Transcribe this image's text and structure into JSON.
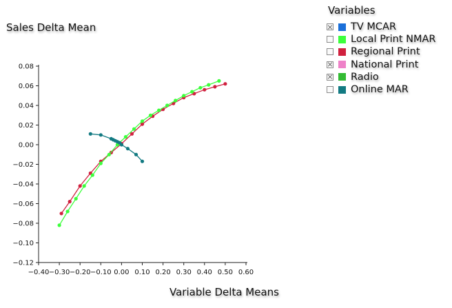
{
  "chart_data": {
    "type": "line",
    "ylabel": "Sales Delta Mean",
    "xlabel": "Variable Delta Means",
    "xlim": [
      -0.4,
      0.6
    ],
    "ylim": [
      -0.12,
      0.08
    ],
    "x_ticks": [
      "−0.40",
      "−0.30",
      "−0.20",
      "−0.10",
      "0.00",
      "0.10",
      "0.20",
      "0.30",
      "0.40",
      "0.50",
      "0.60"
    ],
    "y_ticks": [
      "0.08",
      "0.06",
      "0.04",
      "0.02",
      "0.00",
      "−0.02",
      "−0.04",
      "−0.06",
      "−0.08",
      "−0.10",
      "−0.12"
    ],
    "x_tick_values": [
      -0.4,
      -0.3,
      -0.2,
      -0.1,
      0.0,
      0.1,
      0.2,
      0.3,
      0.4,
      0.5,
      0.6
    ],
    "y_tick_values": [
      0.08,
      0.06,
      0.04,
      0.02,
      0.0,
      -0.02,
      -0.04,
      -0.06,
      -0.08,
      -0.1,
      -0.12
    ],
    "legend": {
      "title": "Variables",
      "placement": "top-right",
      "items": [
        {
          "label": "TV MCAR",
          "color": "#1a6fd9",
          "checked": true
        },
        {
          "label": "Local Print NMAR",
          "color": "#3cff3c",
          "checked": false
        },
        {
          "label": "Regional Print",
          "color": "#d0203e",
          "checked": false
        },
        {
          "label": "National Print",
          "color": "#ee82c8",
          "checked": true
        },
        {
          "label": "Radio",
          "color": "#33bb33",
          "checked": true
        },
        {
          "label": "Online MAR",
          "color": "#127a82",
          "checked": false
        }
      ]
    },
    "series": [
      {
        "name": "Regional Print",
        "color": "#d0203e",
        "x": [
          -0.29,
          -0.25,
          -0.2,
          -0.15,
          -0.1,
          -0.05,
          0.0,
          0.05,
          0.1,
          0.15,
          0.2,
          0.25,
          0.3,
          0.35,
          0.4,
          0.45,
          0.5
        ],
        "y": [
          -0.07,
          -0.058,
          -0.042,
          -0.029,
          -0.017,
          -0.008,
          0.001,
          0.011,
          0.021,
          0.029,
          0.036,
          0.042,
          0.048,
          0.052,
          0.056,
          0.059,
          0.062
        ]
      },
      {
        "name": "Local Print NMAR",
        "color": "#3cff3c",
        "x": [
          -0.3,
          -0.26,
          -0.22,
          -0.18,
          -0.14,
          -0.1,
          -0.06,
          -0.02,
          0.02,
          0.06,
          0.1,
          0.14,
          0.18,
          0.22,
          0.26,
          0.3,
          0.34,
          0.38,
          0.42,
          0.47
        ],
        "y": [
          -0.082,
          -0.068,
          -0.055,
          -0.042,
          -0.031,
          -0.019,
          -0.01,
          0.0,
          0.008,
          0.016,
          0.024,
          0.03,
          0.035,
          0.04,
          0.045,
          0.05,
          0.054,
          0.058,
          0.061,
          0.065
        ]
      },
      {
        "name": "Online MAR",
        "color": "#127a82",
        "x": [
          -0.15,
          -0.1,
          -0.05,
          -0.04,
          -0.03,
          -0.02,
          -0.01,
          0.0,
          0.03,
          0.07,
          0.1
        ],
        "y": [
          0.011,
          0.01,
          0.006,
          0.005,
          0.004,
          0.003,
          0.002,
          0.0,
          -0.004,
          -0.01,
          -0.017
        ]
      }
    ]
  }
}
